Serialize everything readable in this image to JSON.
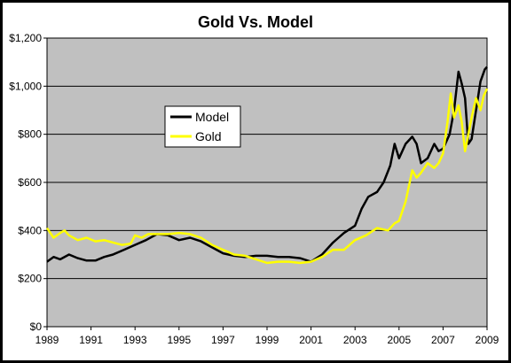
{
  "colors": {
    "plot_bg": "#c0c0c0",
    "model": "#000000",
    "gold": "#ffff00",
    "grid": "#000000"
  },
  "chart_data": {
    "type": "line",
    "title": "Gold Vs. Model",
    "xlabel": "",
    "ylabel": "",
    "xlim": [
      1989,
      2009
    ],
    "ylim": [
      0,
      1200
    ],
    "grid": true,
    "legend_position": "inside-left-middle",
    "x_ticks": [
      "1989",
      "1991",
      "1993",
      "1995",
      "1997",
      "1999",
      "2001",
      "2003",
      "2005",
      "2007",
      "2009"
    ],
    "y_ticks": [
      "$0",
      "$200",
      "$400",
      "$600",
      "$800",
      "$1,000",
      "$1,200"
    ],
    "series": [
      {
        "name": "Model",
        "color": "#000000",
        "points": [
          [
            1989.0,
            270
          ],
          [
            1989.3,
            290
          ],
          [
            1989.6,
            280
          ],
          [
            1990.0,
            300
          ],
          [
            1990.4,
            285
          ],
          [
            1990.8,
            275
          ],
          [
            1991.2,
            275
          ],
          [
            1991.6,
            290
          ],
          [
            1992.0,
            300
          ],
          [
            1992.5,
            320
          ],
          [
            1993.0,
            340
          ],
          [
            1993.5,
            360
          ],
          [
            1994.0,
            385
          ],
          [
            1994.5,
            380
          ],
          [
            1995.0,
            360
          ],
          [
            1995.5,
            370
          ],
          [
            1996.0,
            355
          ],
          [
            1996.5,
            330
          ],
          [
            1997.0,
            305
          ],
          [
            1997.5,
            295
          ],
          [
            1998.0,
            290
          ],
          [
            1998.5,
            295
          ],
          [
            1999.0,
            295
          ],
          [
            1999.5,
            290
          ],
          [
            2000.0,
            290
          ],
          [
            2000.5,
            285
          ],
          [
            2001.0,
            270
          ],
          [
            2001.5,
            300
          ],
          [
            2002.0,
            350
          ],
          [
            2002.5,
            390
          ],
          [
            2003.0,
            420
          ],
          [
            2003.3,
            490
          ],
          [
            2003.6,
            540
          ],
          [
            2004.0,
            560
          ],
          [
            2004.3,
            600
          ],
          [
            2004.6,
            670
          ],
          [
            2004.8,
            760
          ],
          [
            2005.0,
            700
          ],
          [
            2005.3,
            760
          ],
          [
            2005.6,
            790
          ],
          [
            2005.8,
            760
          ],
          [
            2006.0,
            680
          ],
          [
            2006.3,
            700
          ],
          [
            2006.6,
            760
          ],
          [
            2006.8,
            730
          ],
          [
            2007.0,
            740
          ],
          [
            2007.3,
            800
          ],
          [
            2007.5,
            900
          ],
          [
            2007.7,
            1060
          ],
          [
            2007.85,
            1010
          ],
          [
            2008.0,
            950
          ],
          [
            2008.15,
            760
          ],
          [
            2008.3,
            780
          ],
          [
            2008.5,
            900
          ],
          [
            2008.7,
            1020
          ],
          [
            2008.9,
            1070
          ],
          [
            2009.0,
            1080
          ]
        ]
      },
      {
        "name": "Gold",
        "color": "#ffff00",
        "points": [
          [
            1989.0,
            410
          ],
          [
            1989.3,
            370
          ],
          [
            1989.6,
            390
          ],
          [
            1989.8,
            400
          ],
          [
            1990.0,
            380
          ],
          [
            1990.4,
            360
          ],
          [
            1990.8,
            370
          ],
          [
            1991.2,
            355
          ],
          [
            1991.6,
            360
          ],
          [
            1992.0,
            350
          ],
          [
            1992.4,
            340
          ],
          [
            1992.8,
            345
          ],
          [
            1993.0,
            380
          ],
          [
            1993.3,
            370
          ],
          [
            1993.6,
            385
          ],
          [
            1994.0,
            385
          ],
          [
            1994.5,
            385
          ],
          [
            1995.0,
            390
          ],
          [
            1995.5,
            385
          ],
          [
            1996.0,
            370
          ],
          [
            1996.5,
            340
          ],
          [
            1997.0,
            320
          ],
          [
            1997.5,
            300
          ],
          [
            1998.0,
            295
          ],
          [
            1998.5,
            280
          ],
          [
            1999.0,
            265
          ],
          [
            1999.5,
            270
          ],
          [
            2000.0,
            270
          ],
          [
            2000.5,
            265
          ],
          [
            2001.0,
            270
          ],
          [
            2001.5,
            290
          ],
          [
            2002.0,
            320
          ],
          [
            2002.5,
            320
          ],
          [
            2003.0,
            360
          ],
          [
            2003.5,
            380
          ],
          [
            2004.0,
            410
          ],
          [
            2004.5,
            400
          ],
          [
            2004.8,
            430
          ],
          [
            2005.0,
            440
          ],
          [
            2005.3,
            520
          ],
          [
            2005.6,
            650
          ],
          [
            2005.8,
            620
          ],
          [
            2006.0,
            640
          ],
          [
            2006.3,
            680
          ],
          [
            2006.6,
            660
          ],
          [
            2006.8,
            680
          ],
          [
            2007.0,
            720
          ],
          [
            2007.2,
            850
          ],
          [
            2007.35,
            970
          ],
          [
            2007.5,
            870
          ],
          [
            2007.7,
            920
          ],
          [
            2007.85,
            850
          ],
          [
            2008.0,
            730
          ],
          [
            2008.15,
            800
          ],
          [
            2008.3,
            870
          ],
          [
            2008.5,
            950
          ],
          [
            2008.7,
            900
          ],
          [
            2008.85,
            960
          ],
          [
            2009.0,
            990
          ]
        ]
      }
    ]
  }
}
